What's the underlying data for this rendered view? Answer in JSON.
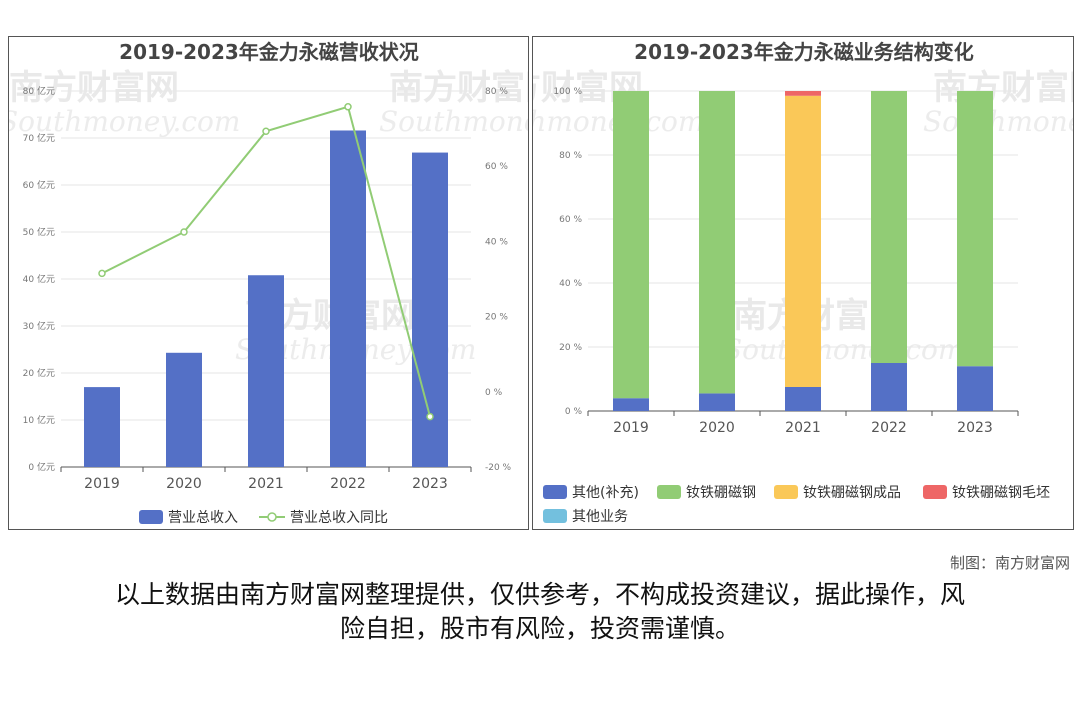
{
  "credit": "制图：南方财富网",
  "disclaimer_line1": "以上数据由南方财富网整理提供，仅供参考，不构成投资建议，据此操作，风",
  "disclaimer_line2": "险自担，股市有风险，投资需谨慎。",
  "watermark": {
    "cn": "南方财富网",
    "en": "Southmoney.com"
  },
  "colors": {
    "blue": "#5470c6",
    "green": "#91cc75",
    "yellow": "#fac858",
    "red": "#ee6666",
    "cyan": "#73c0de"
  },
  "chart_data": [
    {
      "type": "bar",
      "title": "2019-2023年金力永磁营收状况",
      "categories": [
        "2019",
        "2020",
        "2021",
        "2022",
        "2023"
      ],
      "series": [
        {
          "name": "营业总收入",
          "type": "bar",
          "axis": "left",
          "values": [
            17.0,
            24.3,
            40.8,
            71.6,
            66.9
          ]
        },
        {
          "name": "营业总收入同比",
          "type": "line",
          "axis": "right",
          "values": [
            31.5,
            42.5,
            69.3,
            75.8,
            -6.6
          ]
        }
      ],
      "left_axis": {
        "ylim": [
          0,
          80
        ],
        "ticks": [
          "0 亿元",
          "10 亿元",
          "20 亿元",
          "30 亿元",
          "40 亿元",
          "50 亿元",
          "60 亿元",
          "70 亿元",
          "80 亿元"
        ]
      },
      "right_axis": {
        "ylim": [
          -20,
          80
        ],
        "ticks": [
          "-20 %",
          "0 %",
          "20 %",
          "40 %",
          "60 %",
          "80 %"
        ]
      },
      "legend_position": "bottom"
    },
    {
      "type": "bar",
      "stacked": true,
      "title": "2019-2023年金力永磁业务结构变化",
      "categories": [
        "2019",
        "2020",
        "2021",
        "2022",
        "2023"
      ],
      "series": [
        {
          "name": "其他(补充)",
          "values": [
            4,
            5.5,
            7.5,
            15,
            14
          ]
        },
        {
          "name": "钕铁硼磁钢",
          "values": [
            96,
            94.5,
            0,
            85,
            86
          ]
        },
        {
          "name": "钕铁硼磁钢成品",
          "values": [
            0,
            0,
            91,
            0,
            0
          ]
        },
        {
          "name": "钕铁硼磁钢毛坯",
          "values": [
            0,
            0,
            1.5,
            0,
            0
          ]
        },
        {
          "name": "其他业务",
          "values": [
            0,
            0,
            0,
            0,
            0
          ]
        }
      ],
      "ylim": [
        0,
        100
      ],
      "ticks": [
        "0 %",
        "20 %",
        "40 %",
        "60 %",
        "80 %",
        "100 %"
      ],
      "legend_position": "bottom"
    }
  ]
}
